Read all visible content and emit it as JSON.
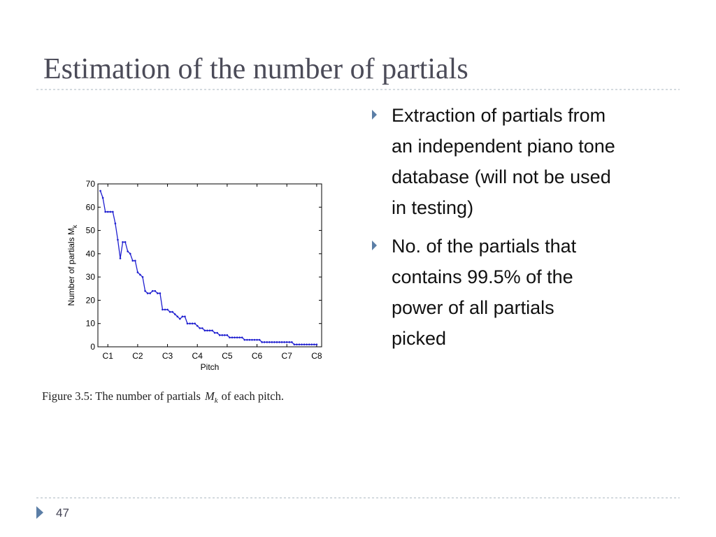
{
  "title": "Estimation of the number of partials",
  "bullets": [
    [
      "Extraction of partials from",
      "an independent piano tone",
      "database (will not be used",
      "in testing)"
    ],
    [
      "No. of the partials that",
      "contains 99.5% of the",
      "power of all partials",
      "picked"
    ]
  ],
  "caption": {
    "before": "Figure 3.5:  The number of partials",
    "symbol": "M",
    "sub": "k",
    "after": "of each pitch."
  },
  "page_number": "47",
  "chart_data": {
    "type": "line",
    "xlabel": "Pitch",
    "ylabel": {
      "text": "Number of partials M",
      "sub": "k"
    },
    "x": [
      1,
      2,
      3,
      4,
      5,
      6,
      7,
      8,
      9,
      10,
      11,
      12,
      13,
      14,
      15,
      16,
      17,
      18,
      19,
      20,
      21,
      22,
      23,
      24,
      25,
      26,
      27,
      28,
      29,
      30,
      31,
      32,
      33,
      34,
      35,
      36,
      37,
      38,
      39,
      40,
      41,
      42,
      43,
      44,
      45,
      46,
      47,
      48,
      49,
      50,
      51,
      52,
      53,
      54,
      55,
      56,
      57,
      58,
      59,
      60,
      61,
      62,
      63,
      64,
      65,
      66,
      67,
      68,
      69,
      70,
      71,
      72,
      73,
      74,
      75,
      76,
      77,
      78,
      79,
      80,
      81,
      82,
      83,
      84,
      85,
      86,
      87,
      88
    ],
    "series": [
      {
        "color": "#1f1fd0",
        "values": [
          67,
          64,
          58,
          58,
          58,
          58,
          53,
          46,
          38,
          45,
          45,
          41,
          40,
          37,
          37,
          32,
          31,
          30,
          24,
          23,
          23,
          24,
          24,
          23,
          23,
          16,
          16,
          16,
          15,
          15,
          14,
          13,
          12,
          13,
          13,
          10,
          10,
          10,
          10,
          9,
          8,
          8,
          7,
          7,
          7,
          7,
          6,
          6,
          5,
          5,
          5,
          5,
          4,
          4,
          4,
          4,
          4,
          4,
          3,
          3,
          3,
          3,
          3,
          3,
          3,
          2,
          2,
          2,
          2,
          2,
          2,
          2,
          2,
          2,
          2,
          2,
          2,
          2,
          1,
          1,
          1,
          1,
          1,
          1,
          1,
          1,
          1,
          1
        ]
      }
    ],
    "xlim": [
      0,
      90
    ],
    "ylim": [
      0,
      70
    ],
    "xticks": [
      {
        "value": 4,
        "label": "C1"
      },
      {
        "value": 16,
        "label": "C2"
      },
      {
        "value": 28,
        "label": "C3"
      },
      {
        "value": 40,
        "label": "C4"
      },
      {
        "value": 52,
        "label": "C5"
      },
      {
        "value": 64,
        "label": "C6"
      },
      {
        "value": 76,
        "label": "C7"
      },
      {
        "value": 88,
        "label": "C8"
      }
    ],
    "yticks": [
      0,
      10,
      20,
      30,
      40,
      50,
      60,
      70
    ]
  }
}
